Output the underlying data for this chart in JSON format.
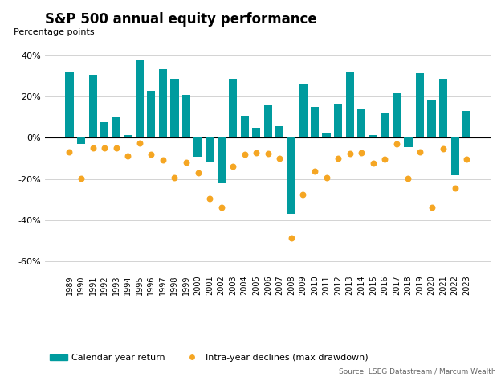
{
  "years": [
    1989,
    1990,
    1991,
    1992,
    1993,
    1994,
    1995,
    1996,
    1997,
    1998,
    1999,
    2000,
    2001,
    2002,
    2003,
    2004,
    2005,
    2006,
    2007,
    2008,
    2009,
    2010,
    2011,
    2012,
    2013,
    2014,
    2015,
    2016,
    2017,
    2018,
    2019,
    2020,
    2021,
    2022,
    2023
  ],
  "calendar_returns": [
    31.7,
    -3.1,
    30.5,
    7.6,
    10.1,
    1.3,
    37.6,
    23.0,
    33.4,
    28.6,
    21.0,
    -9.1,
    -11.9,
    -22.1,
    28.7,
    10.9,
    4.9,
    15.8,
    5.5,
    -37.0,
    26.5,
    15.1,
    2.1,
    16.0,
    32.4,
    13.7,
    1.4,
    12.0,
    21.8,
    -4.4,
    31.5,
    18.4,
    28.7,
    -18.1,
    13.1
  ],
  "intra_year_declines": [
    -7.0,
    -19.9,
    -5.0,
    -5.1,
    -5.0,
    -8.9,
    -2.5,
    -8.0,
    -10.8,
    -19.3,
    -12.1,
    -17.0,
    -29.7,
    -33.7,
    -14.0,
    -8.1,
    -7.1,
    -7.7,
    -9.9,
    -48.8,
    -27.6,
    -16.1,
    -19.4,
    -9.9,
    -7.7,
    -7.4,
    -12.4,
    -10.5,
    -2.8,
    -19.8,
    -6.8,
    -33.9,
    -5.2,
    -24.5,
    -10.3
  ],
  "bar_color": "#009B9E",
  "dot_color": "#F5A623",
  "title": "S&P 500 annual equity performance",
  "ylabel": "Percentage points",
  "ylim": [
    -65,
    45
  ],
  "yticks": [
    -60,
    -40,
    -20,
    0,
    20,
    40
  ],
  "ytick_labels": [
    "-60%",
    "-40%",
    "-20%",
    "0%",
    "20%",
    "40%"
  ],
  "source": "Source: LSEG Datastream / Marcum Wealth",
  "legend_bar_label": "Calendar year return",
  "legend_dot_label": "Intra-year declines (max drawdown)",
  "background_color": "#ffffff",
  "grid_color": "#cccccc"
}
